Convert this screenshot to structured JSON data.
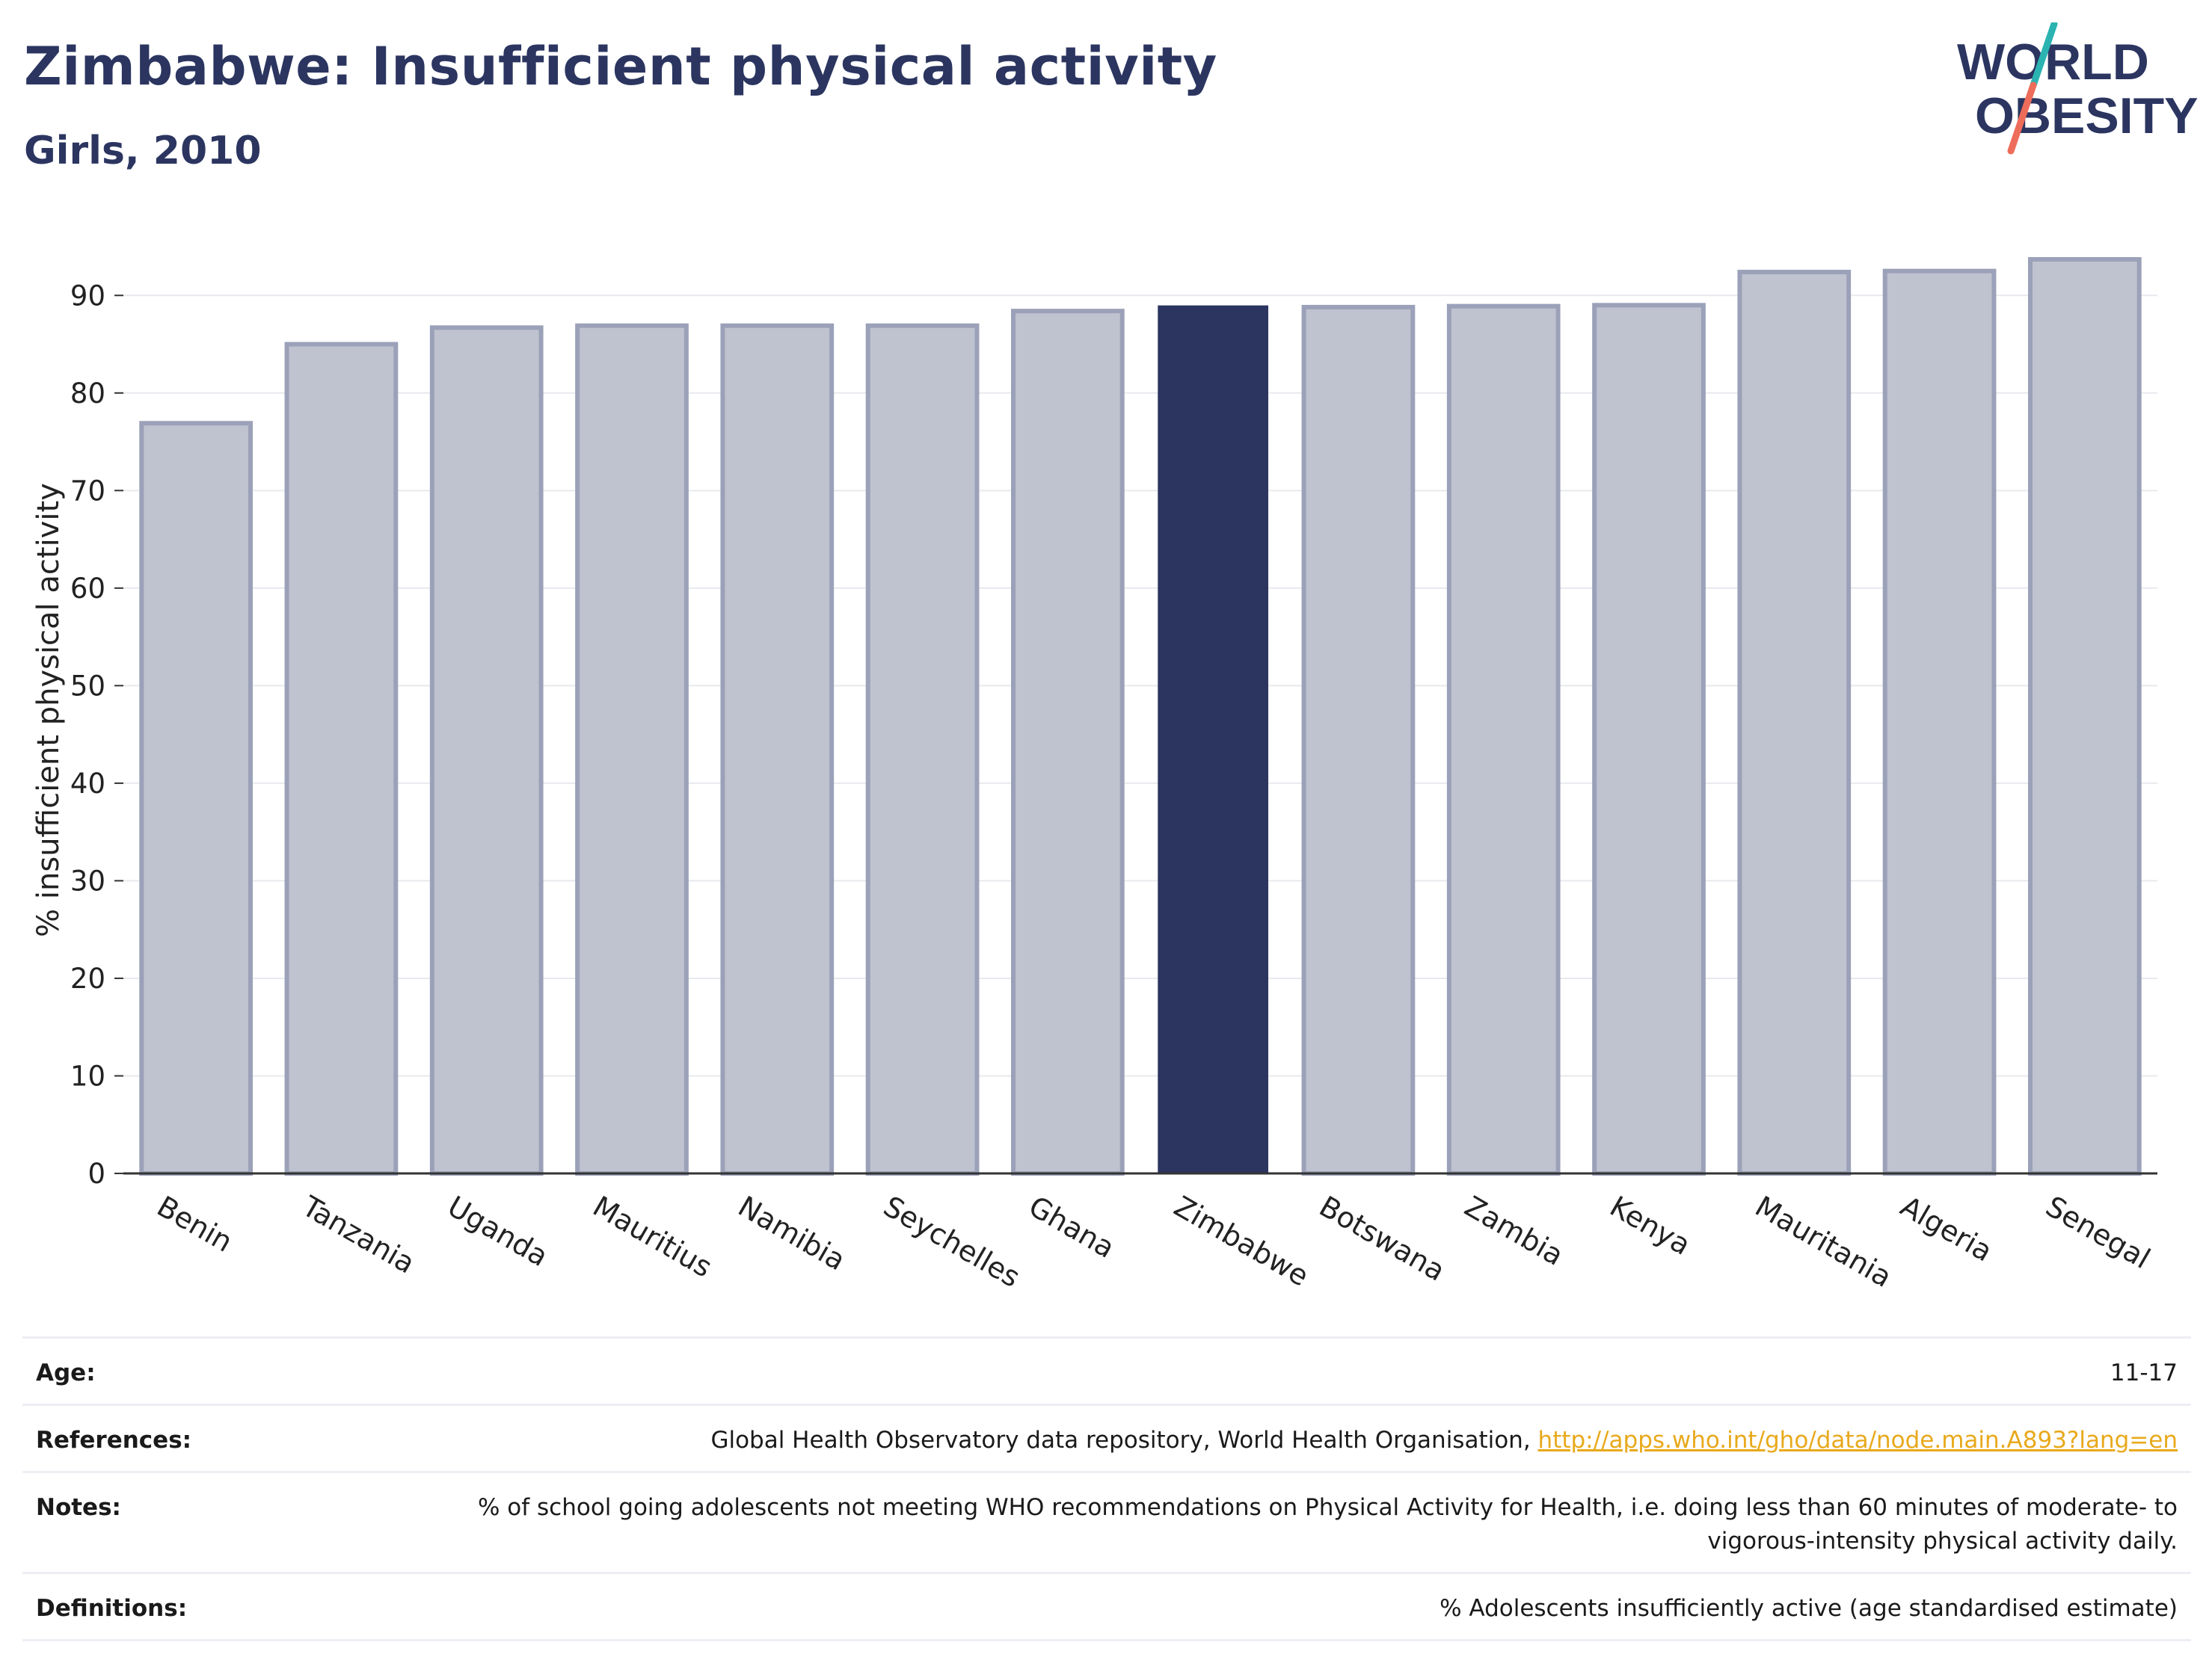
{
  "header": {
    "title": "Zimbabwe: Insufficient physical activity",
    "subtitle": "Girls, 2010"
  },
  "logo": {
    "line1": "WORLD",
    "line2": "OBESITY",
    "slash_colors": [
      "#2bb3b1",
      "#ee6c5a"
    ]
  },
  "colors": {
    "highlight": "#2b3560",
    "bar_fill": "#bfc2cf",
    "bar_stroke": "#9ba1b8"
  },
  "chart_data": {
    "type": "bar",
    "title": "Zimbabwe: Insufficient physical activity",
    "subtitle": "Girls, 2010",
    "ylabel": "% insufficient physical activity",
    "xlabel": "",
    "ylim": [
      0,
      95
    ],
    "yticks": [
      0,
      10,
      20,
      30,
      40,
      50,
      60,
      70,
      80,
      90
    ],
    "grid": true,
    "highlight": "Zimbabwe",
    "categories": [
      "Benin",
      "Tanzania",
      "Uganda",
      "Mauritius",
      "Namibia",
      "Seychelles",
      "Ghana",
      "Zimbabwe",
      "Botswana",
      "Zambia",
      "Kenya",
      "Mauritania",
      "Algeria",
      "Senegal"
    ],
    "values": [
      76.9,
      85.0,
      86.7,
      86.9,
      86.9,
      86.9,
      88.4,
      88.9,
      88.8,
      88.9,
      89.0,
      92.4,
      92.5,
      93.7
    ]
  },
  "metadata": [
    {
      "key": "Age:",
      "value": "11-17"
    },
    {
      "key": "References:",
      "value": "Global Health Observatory data repository, World Health Organisation, ",
      "link": "http://apps.who.int/gho/data/node.main.A893?lang=en"
    },
    {
      "key": "Notes:",
      "value": "% of school going adolescents not meeting WHO recommendations on Physical Activity for Health, i.e. doing less than 60 minutes of moderate- to vigorous-intensity physical activity daily."
    },
    {
      "key": "Definitions:",
      "value": "% Adolescents insufficiently active (age standardised estimate)"
    }
  ]
}
